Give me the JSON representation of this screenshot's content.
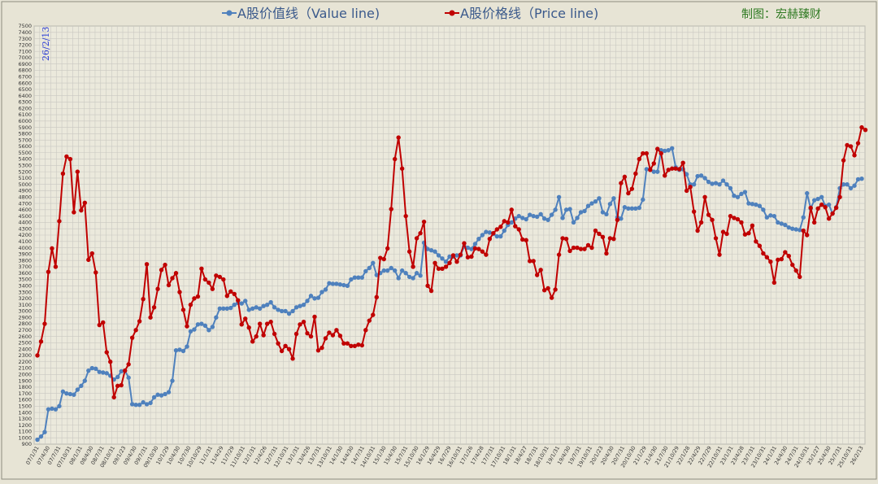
{
  "chart_data": {
    "type": "line",
    "legend": [
      "A股价值线（Value line)",
      "A股价格线（Price line)"
    ],
    "credit": "制图：宏赫臻财",
    "date_stamp": "26/2/13",
    "ylim": [
      900,
      7500
    ],
    "y_step": 100,
    "x_tick_labels": [
      "07/1/31",
      "07/4/30",
      "07/7/31",
      "07/10/31",
      "08/1/31",
      "08/4/30",
      "08/7/31",
      "08/10/31",
      "09/1/23",
      "09/4/30",
      "09/7/31",
      "09/10/30",
      "10/1/29",
      "10/4/30",
      "10/7/30",
      "10/10/29",
      "11/1/31",
      "11/4/29",
      "11/7/29",
      "11/10/31",
      "12/1/31",
      "12/4/26",
      "12/7/31",
      "12/10/31",
      "13/1/31",
      "13/4/26",
      "13/7/31",
      "13/10/31",
      "14/1/30",
      "14/4/30",
      "14/7/31",
      "14/10/31",
      "15/1/30",
      "15/4/30",
      "15/7/31",
      "15/10/30",
      "16/1/29",
      "16/4/29",
      "16/7/29",
      "16/10/31",
      "17/1/26",
      "17/4/28",
      "17/7/31",
      "17/10/31",
      "18/1/31",
      "18/4/27",
      "18/7/31",
      "18/10/31",
      "19/1/31",
      "19/4/30",
      "19/7/31",
      "19/10/31",
      "20/1/23",
      "20/4/30",
      "20/7/31",
      "20/10/30",
      "21/1/29",
      "21/4/30",
      "21/7/30",
      "21/10/29",
      "22/1/28",
      "22/4/29",
      "22/7/29",
      "22/10/31",
      "23/1/31",
      "23/4/28",
      "23/7/31",
      "23/10/31",
      "24/1/31",
      "24/4/30",
      "24/7/31",
      "24/10/31",
      "25/1/27",
      "25/4/30",
      "25/7/31",
      "25/10/31",
      "26/2/13"
    ],
    "series": [
      {
        "name": "A股价值线（Value line)",
        "color": "#4f81bd",
        "values": [
          970,
          1020,
          1090,
          1450,
          1460,
          1450,
          1500,
          1730,
          1700,
          1690,
          1680,
          1760,
          1820,
          1900,
          2060,
          2100,
          2090,
          2040,
          2030,
          2020,
          1980,
          1920,
          1960,
          2050,
          2060,
          1950,
          1530,
          1520,
          1520,
          1560,
          1530,
          1550,
          1640,
          1680,
          1670,
          1690,
          1720,
          1900,
          2380,
          2390,
          2370,
          2440,
          2680,
          2710,
          2790,
          2800,
          2770,
          2700,
          2750,
          2900,
          3040,
          3040,
          3040,
          3050,
          3100,
          3130,
          3120,
          3160,
          3020,
          3040,
          3060,
          3040,
          3080,
          3100,
          3140,
          3060,
          3020,
          3000,
          3000,
          2960,
          3000,
          3060,
          3080,
          3100,
          3160,
          3240,
          3200,
          3210,
          3300,
          3340,
          3440,
          3430,
          3430,
          3420,
          3410,
          3400,
          3500,
          3530,
          3530,
          3530,
          3630,
          3680,
          3760,
          3570,
          3600,
          3640,
          3640,
          3680,
          3640,
          3520,
          3640,
          3600,
          3540,
          3520,
          3600,
          3560,
          4080,
          3980,
          3960,
          3940,
          3880,
          3830,
          3780,
          3860,
          3860,
          3880,
          3880,
          4020,
          4000,
          3980,
          4060,
          4140,
          4200,
          4250,
          4240,
          4220,
          4180,
          4180,
          4270,
          4360,
          4400,
          4460,
          4500,
          4470,
          4450,
          4520,
          4500,
          4490,
          4530,
          4460,
          4440,
          4520,
          4600,
          4800,
          4470,
          4600,
          4610,
          4400,
          4470,
          4560,
          4580,
          4660,
          4700,
          4730,
          4780,
          4560,
          4530,
          4690,
          4780,
          4480,
          4460,
          4640,
          4620,
          4620,
          4620,
          4630,
          4760,
          5240,
          5240,
          5200,
          5200,
          5540,
          5530,
          5540,
          5570,
          5270,
          5230,
          5240,
          5160,
          5000,
          5000,
          5130,
          5140,
          5100,
          5040,
          5010,
          5020,
          5000,
          5060,
          5000,
          4940,
          4820,
          4800,
          4850,
          4880,
          4700,
          4690,
          4680,
          4660,
          4600,
          4480,
          4510,
          4500,
          4400,
          4380,
          4360,
          4320,
          4300,
          4290,
          4280,
          4480,
          4860,
          4620,
          4750,
          4770,
          4800,
          4660,
          4680,
          4540,
          4640,
          4940,
          5000,
          5000,
          4940,
          4980,
          5080,
          5090
        ]
      },
      {
        "name": "A股价格线（Price line)",
        "color": "#c00000",
        "values": [
          2300,
          2520,
          2800,
          3620,
          3990,
          3700,
          4420,
          5170,
          5440,
          5400,
          4560,
          5200,
          4590,
          4710,
          3810,
          3910,
          3610,
          2780,
          2820,
          2350,
          2200,
          1640,
          1820,
          1830,
          2060,
          2160,
          2580,
          2700,
          2840,
          3190,
          3740,
          2900,
          3060,
          3350,
          3650,
          3730,
          3410,
          3520,
          3600,
          3300,
          3020,
          2760,
          3100,
          3200,
          3230,
          3670,
          3500,
          3450,
          3350,
          3560,
          3540,
          3500,
          3240,
          3310,
          3270,
          3170,
          2790,
          2880,
          2740,
          2520,
          2600,
          2800,
          2620,
          2800,
          2830,
          2640,
          2490,
          2370,
          2450,
          2400,
          2250,
          2640,
          2790,
          2830,
          2650,
          2600,
          2910,
          2380,
          2420,
          2570,
          2660,
          2620,
          2700,
          2610,
          2490,
          2490,
          2450,
          2450,
          2470,
          2460,
          2700,
          2850,
          2940,
          3220,
          3840,
          3820,
          3990,
          4610,
          5400,
          5740,
          5250,
          4500,
          3940,
          3700,
          4150,
          4230,
          4410,
          3400,
          3320,
          3760,
          3670,
          3670,
          3700,
          3760,
          3880,
          3780,
          3890,
          4070,
          3850,
          3860,
          3990,
          3980,
          3940,
          3890,
          4140,
          4230,
          4290,
          4330,
          4420,
          4400,
          4600,
          4340,
          4290,
          4130,
          4120,
          3790,
          3790,
          3570,
          3650,
          3330,
          3360,
          3210,
          3340,
          3890,
          4150,
          4140,
          3950,
          4000,
          4000,
          3980,
          3980,
          4040,
          4000,
          4270,
          4220,
          4170,
          3910,
          4150,
          4140,
          4440,
          5020,
          5120,
          4860,
          4930,
          5170,
          5400,
          5490,
          5490,
          5230,
          5330,
          5560,
          5490,
          5140,
          5230,
          5250,
          5250,
          5240,
          5340,
          4900,
          4960,
          4570,
          4270,
          4400,
          4800,
          4520,
          4440,
          4150,
          3890,
          4250,
          4220,
          4500,
          4470,
          4450,
          4400,
          4210,
          4230,
          4350,
          4100,
          4030,
          3910,
          3850,
          3780,
          3450,
          3810,
          3820,
          3930,
          3870,
          3730,
          3640,
          3540,
          4270,
          4200,
          4630,
          4400,
          4620,
          4680,
          4640,
          4460,
          4540,
          4630,
          4800,
          5380,
          5620,
          5600,
          5460,
          5650,
          5900,
          5860
        ]
      }
    ]
  }
}
